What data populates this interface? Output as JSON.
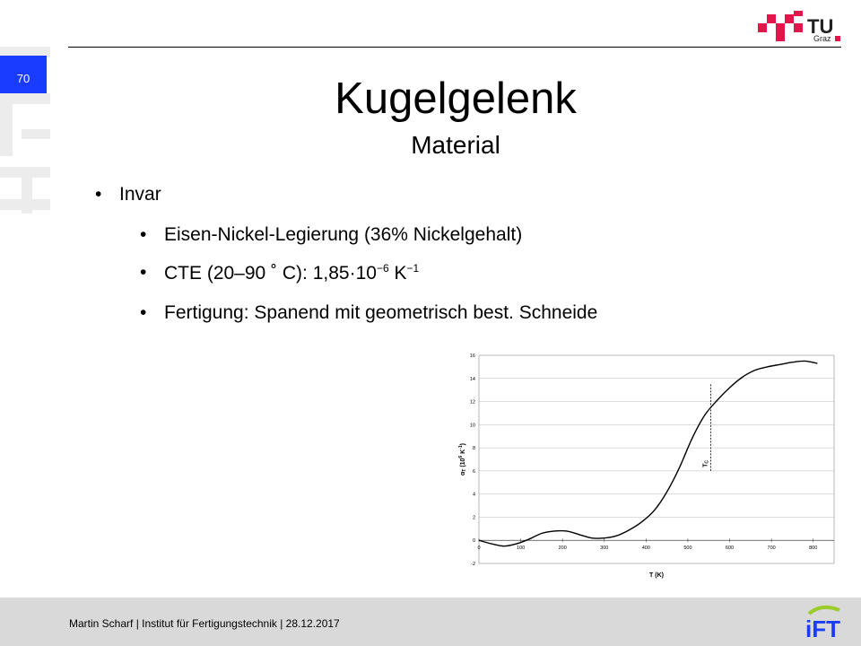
{
  "header": {
    "page_number": "70",
    "watermark_text": "IFT",
    "logo_text_main": "TU",
    "logo_text_sub": "Graz"
  },
  "slide": {
    "title": "Kugelgelenk",
    "subtitle": "Material",
    "bullets": [
      {
        "level": 1,
        "text": "Invar"
      },
      {
        "level": 2,
        "text": "Eisen-Nickel-Legierung (36% Nickelgehalt)"
      },
      {
        "level": 2,
        "text_before": "CTE (20–90 ˚ C): 1,85·10",
        "exp1": "−6",
        "text_mid": " K",
        "exp2": "−1"
      },
      {
        "level": 2,
        "text": "Fertigung: Spanend mit geometrisch best. Schneide"
      }
    ],
    "bullet_char": "•"
  },
  "chart_data": {
    "type": "line",
    "xlabel": "T (K)",
    "ylabel_main": "α",
    "ylabel_sub": "T",
    "ylabel_rest": " (10",
    "ylabel_exp": "6",
    "ylabel_unit": " K",
    "ylabel_unit_exp": "-1",
    "ylabel_close": ")",
    "xlim": [
      0,
      850
    ],
    "ylim": [
      -2,
      16
    ],
    "xticks": [
      "0",
      "100",
      "200",
      "300",
      "400",
      "500",
      "600",
      "700",
      "800"
    ],
    "yticks": [
      "-2",
      "0",
      "2",
      "4",
      "6",
      "8",
      "10",
      "12",
      "14",
      "16"
    ],
    "grid": true,
    "annotation": {
      "label": "T",
      "label_sub": "C",
      "x": 555,
      "y_from": 6,
      "y_to": 13.5
    },
    "x": [
      0,
      30,
      60,
      90,
      120,
      150,
      180,
      210,
      240,
      270,
      300,
      330,
      360,
      390,
      420,
      450,
      480,
      510,
      540,
      570,
      600,
      630,
      660,
      690,
      720,
      750,
      780,
      810
    ],
    "y": [
      0,
      -0.3,
      -0.5,
      -0.3,
      0.1,
      0.6,
      0.8,
      0.8,
      0.5,
      0.2,
      0.2,
      0.4,
      0.9,
      1.6,
      2.6,
      4.2,
      6.3,
      8.8,
      10.8,
      12.1,
      13.2,
      14.1,
      14.7,
      15.0,
      15.2,
      15.4,
      15.5,
      15.3
    ]
  },
  "footer": {
    "text": "Martin Scharf | Institut für Fertigungstechnik | 28.12.2017",
    "logo_text": "iFT"
  }
}
